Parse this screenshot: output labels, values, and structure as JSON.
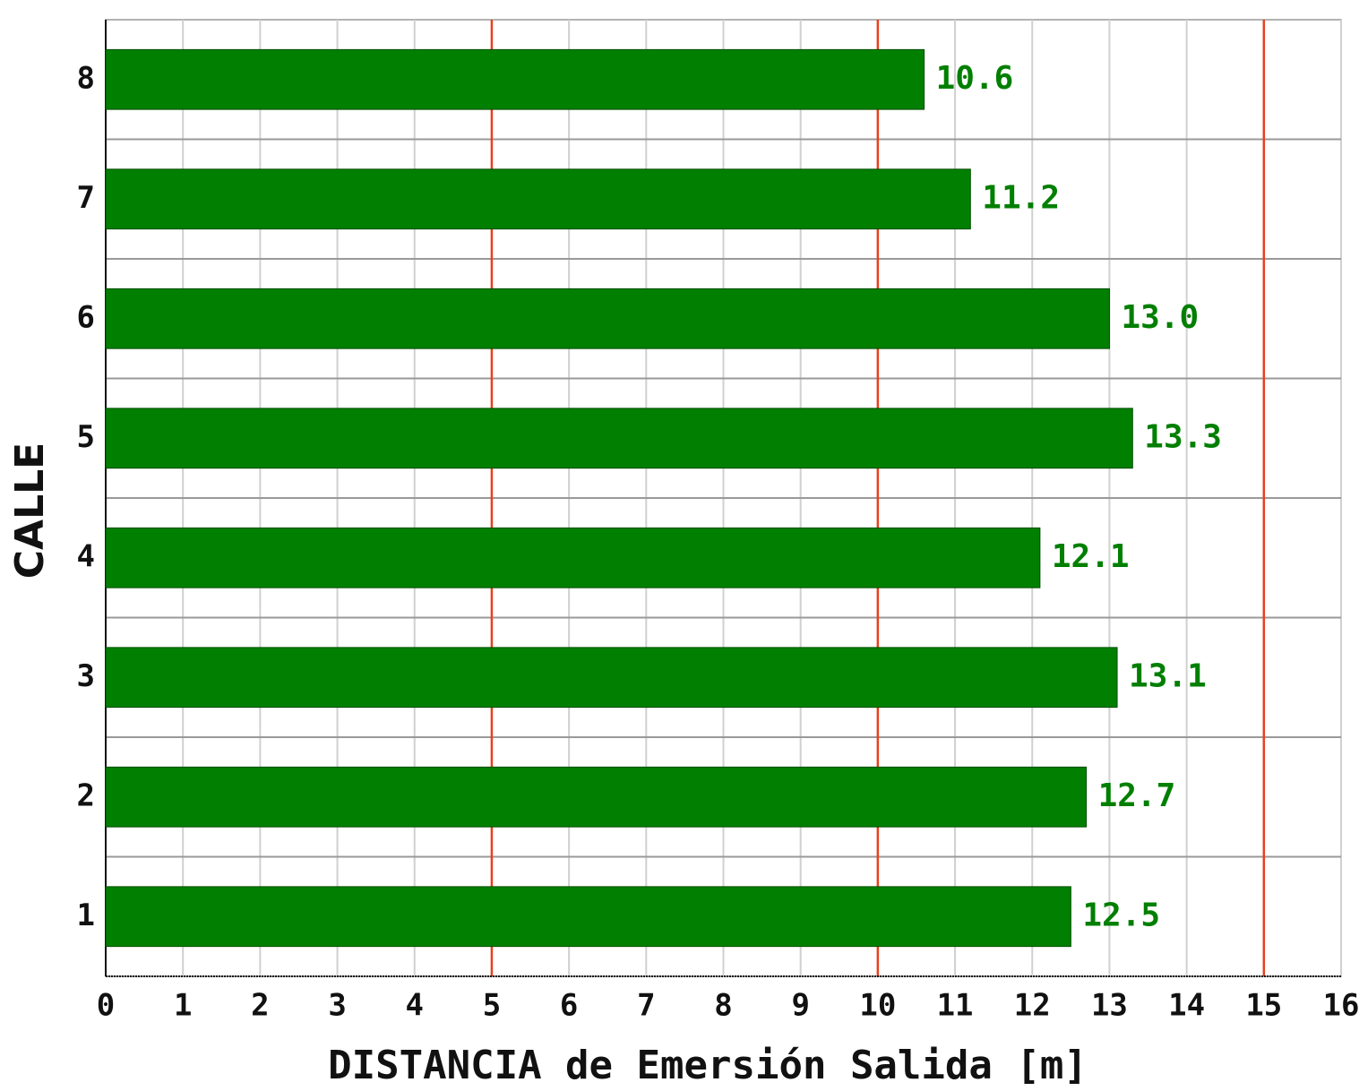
{
  "chart_data": {
    "type": "barh",
    "xlabel": "DISTANCIA de Emersión Salida [m]",
    "ylabel": "CALLE",
    "categories": [
      "1",
      "2",
      "3",
      "4",
      "5",
      "6",
      "7",
      "8"
    ],
    "values": [
      12.5,
      12.7,
      13.1,
      12.1,
      13.3,
      13.0,
      11.2,
      10.6
    ],
    "value_labels": [
      "12.5",
      "12.7",
      "13.1",
      "12.1",
      "13.3",
      "13.0",
      "11.2",
      "10.6"
    ],
    "color": "#007f00",
    "xlim": [
      0,
      16
    ],
    "xticks": [
      0,
      1,
      2,
      3,
      4,
      5,
      6,
      7,
      8,
      9,
      10,
      11,
      12,
      13,
      14,
      15,
      16
    ],
    "grid": true,
    "reference_lines": {
      "values": [
        5,
        10,
        15
      ],
      "color": "#e8401c"
    }
  }
}
